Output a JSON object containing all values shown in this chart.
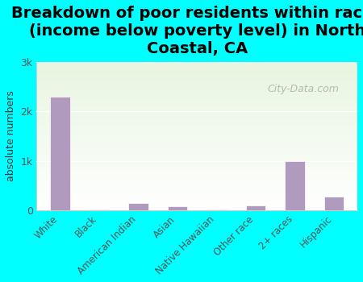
{
  "title": "Breakdown of poor residents within races\n(income below poverty level) in North\nCoastal, CA",
  "categories": [
    "White",
    "Black",
    "American Indian",
    "Asian",
    "Native Hawaiian",
    "Other race",
    "2+ races",
    "Hispanic"
  ],
  "values": [
    2300,
    20,
    150,
    80,
    5,
    100,
    1000,
    270
  ],
  "bar_color": "#b09abe",
  "ylabel": "absolute numbers",
  "ylim": [
    0,
    3000
  ],
  "yticks": [
    0,
    1000,
    2000,
    3000
  ],
  "ytick_labels": [
    "0",
    "1k",
    "2k",
    "3k"
  ],
  "background_top": "#e8f5e0",
  "background_bottom": "#f5faf0",
  "outer_background": "#00ffff",
  "title_fontsize": 14,
  "watermark": "City-Data.com"
}
